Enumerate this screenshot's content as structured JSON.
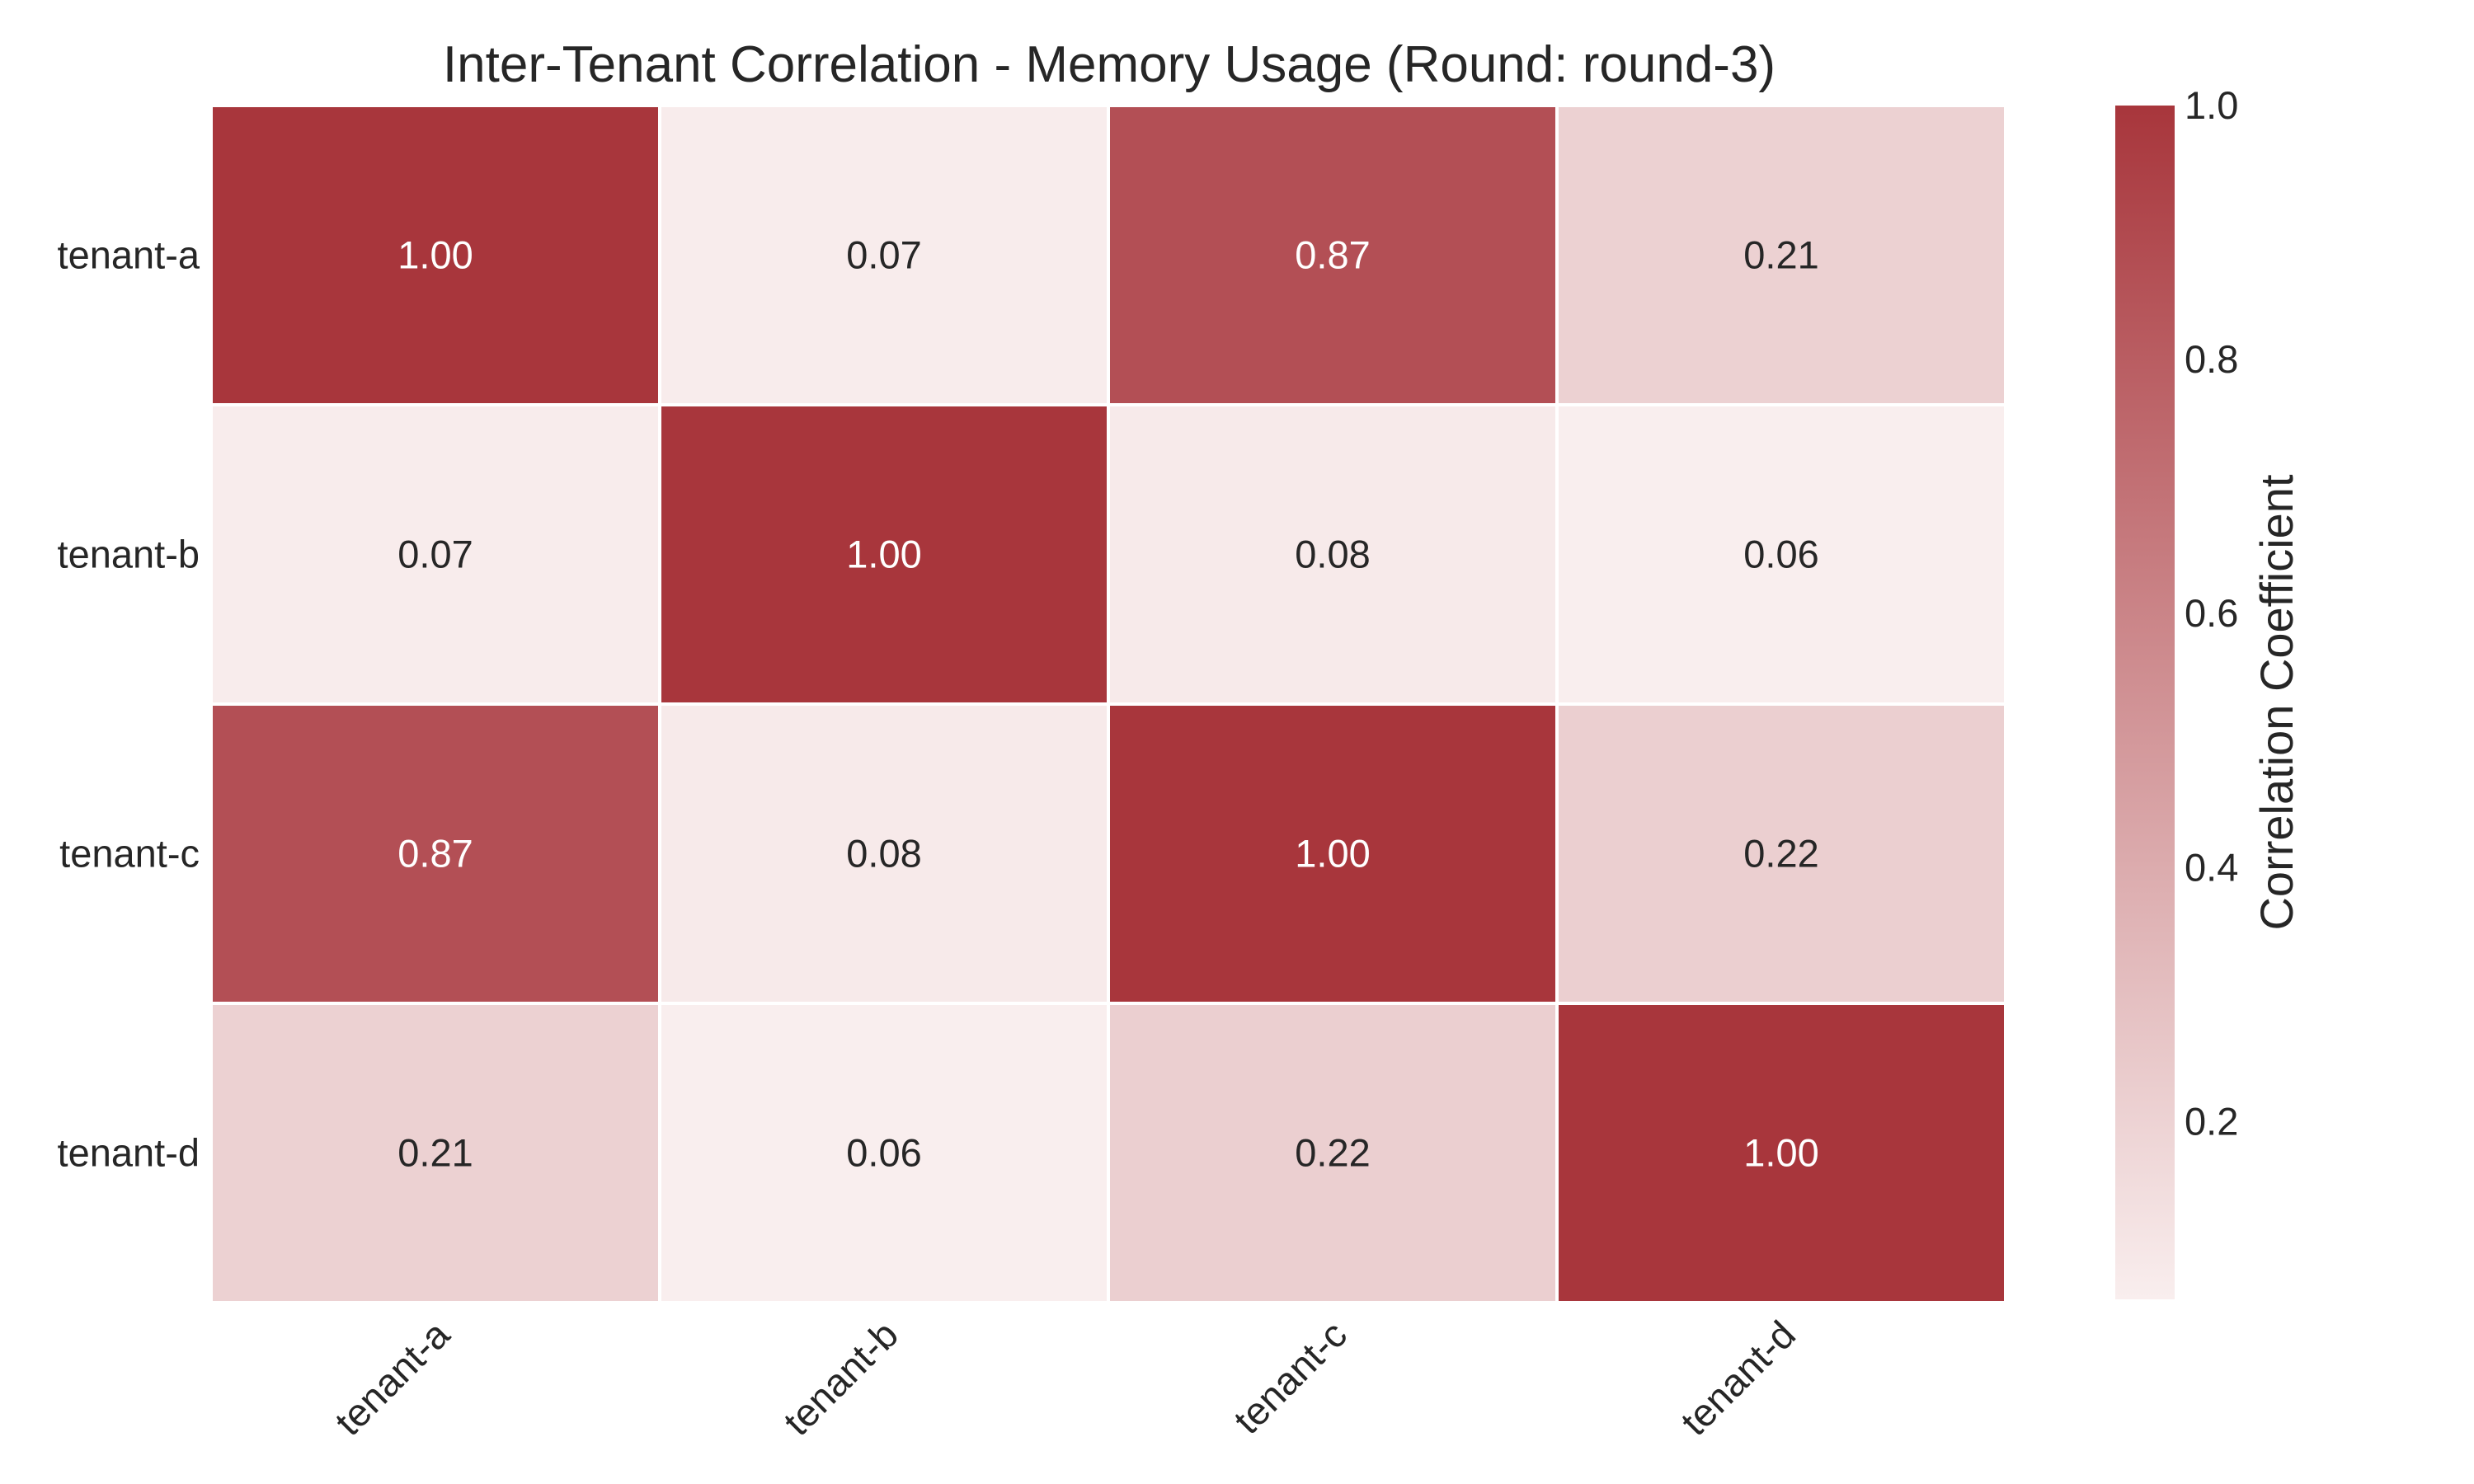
{
  "chart_data": {
    "type": "heatmap",
    "title": "Inter-Tenant Correlation - Memory Usage (Round: round-3)",
    "x_categories": [
      "tenant-a",
      "tenant-b",
      "tenant-c",
      "tenant-d"
    ],
    "y_categories": [
      "tenant-a",
      "tenant-b",
      "tenant-c",
      "tenant-d"
    ],
    "values": [
      [
        1.0,
        0.07,
        0.87,
        0.21
      ],
      [
        0.07,
        1.0,
        0.08,
        0.06
      ],
      [
        0.87,
        0.08,
        1.0,
        0.22
      ],
      [
        0.21,
        0.06,
        0.22,
        1.0
      ]
    ],
    "value_format_decimals": 2,
    "colorbar": {
      "label": "Correlation Coefficient",
      "range": [
        0.06,
        1.0
      ],
      "ticks": [
        0.2,
        0.4,
        0.6,
        0.8,
        1.0
      ],
      "tick_labels": [
        "0.2",
        "0.4",
        "0.6",
        "0.8",
        "1.0"
      ],
      "color_low": "#f9eeee",
      "color_high": "#a8363c"
    },
    "text_color_dark": "#262626",
    "text_color_light": "#ffffff",
    "grid_line_color": "#ffffff"
  }
}
